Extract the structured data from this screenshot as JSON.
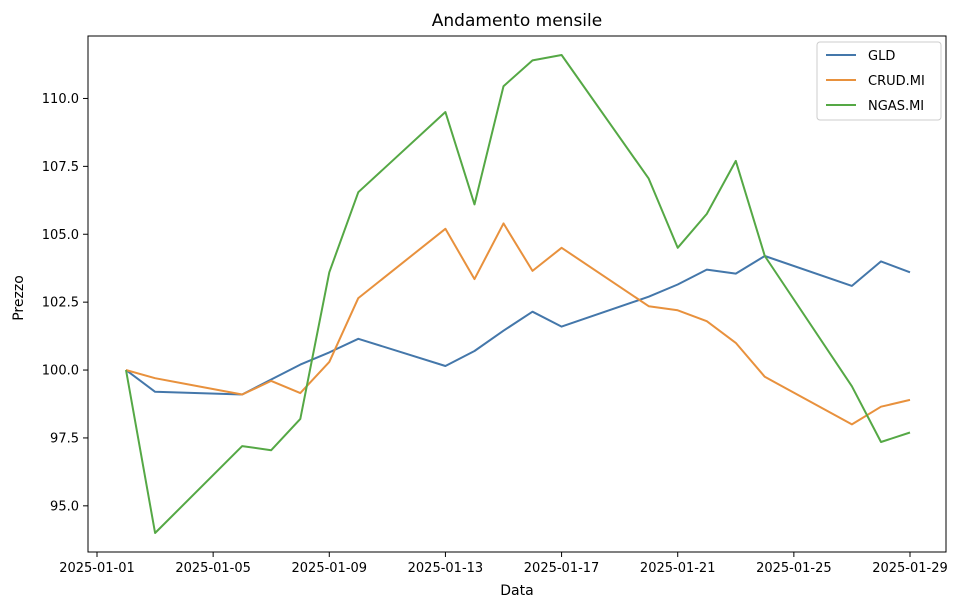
{
  "chart_data": {
    "type": "line",
    "title": "Andamento mensile",
    "xlabel": "Data",
    "ylabel": "Prezzo",
    "x": [
      "2025-01-02",
      "2025-01-03",
      "2025-01-06",
      "2025-01-07",
      "2025-01-08",
      "2025-01-09",
      "2025-01-10",
      "2025-01-13",
      "2025-01-14",
      "2025-01-15",
      "2025-01-16",
      "2025-01-17",
      "2025-01-20",
      "2025-01-21",
      "2025-01-22",
      "2025-01-23",
      "2025-01-24",
      "2025-01-27",
      "2025-01-28",
      "2025-01-29"
    ],
    "xticks": [
      "2025-01-01",
      "2025-01-05",
      "2025-01-09",
      "2025-01-13",
      "2025-01-17",
      "2025-01-21",
      "2025-01-25",
      "2025-01-29"
    ],
    "xlim": [
      "2025-01-01",
      "2025-01-29"
    ],
    "yticks": [
      95.0,
      97.5,
      100.0,
      102.5,
      105.0,
      107.5,
      110.0
    ],
    "ylim": [
      93.3,
      112.3
    ],
    "grid": false,
    "legend_position": "top-right",
    "series": [
      {
        "name": "GLD",
        "color": "#4477aa",
        "values": [
          100.0,
          99.2,
          99.1,
          99.65,
          100.2,
          100.65,
          101.15,
          100.15,
          100.7,
          101.45,
          102.15,
          101.6,
          102.7,
          103.15,
          103.7,
          103.55,
          104.2,
          103.1,
          104.0,
          103.6
        ]
      },
      {
        "name": "CRUD.MI",
        "color": "#e8913d",
        "values": [
          100.0,
          99.7,
          99.1,
          99.6,
          99.15,
          100.3,
          102.65,
          105.2,
          103.35,
          105.4,
          103.65,
          104.5,
          102.35,
          102.2,
          101.8,
          101.0,
          99.75,
          98.0,
          98.65,
          98.9
        ]
      },
      {
        "name": "NGAS.MI",
        "color": "#55a845",
        "values": [
          100.0,
          94.0,
          97.2,
          97.05,
          98.2,
          103.6,
          106.55,
          109.5,
          106.1,
          110.45,
          111.4,
          111.6,
          107.05,
          104.5,
          105.75,
          107.7,
          104.2,
          99.4,
          97.35,
          97.7
        ]
      }
    ]
  }
}
